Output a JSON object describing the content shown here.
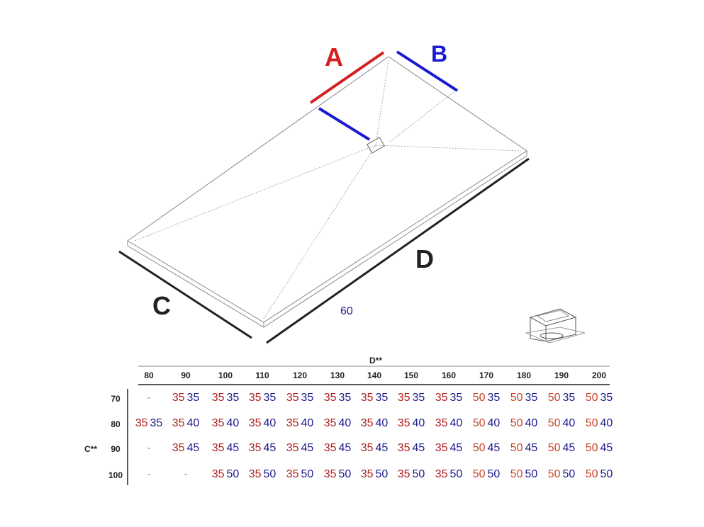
{
  "labels": {
    "A": "A",
    "B": "B",
    "C": "C",
    "D": "D",
    "dimension": "60"
  },
  "colors": {
    "A": "#d42020",
    "B": "#1a1ad0",
    "first_35": "#b02020",
    "first_50": "#c8452a",
    "second": "#1a1a8c"
  },
  "table": {
    "col_axis": "D**",
    "row_axis": "C**",
    "columns": [
      "80",
      "90",
      "100",
      "110",
      "120",
      "130",
      "140",
      "150",
      "160",
      "170",
      "180",
      "190",
      "200"
    ],
    "rows": [
      {
        "label": "70",
        "cells": [
          "-",
          "35 35",
          "35 35",
          "35 35",
          "35 35",
          "35 35",
          "35 35",
          "35 35",
          "35 35",
          "50 35",
          "50 35",
          "50 35",
          "50 35"
        ]
      },
      {
        "label": "80",
        "cells": [
          "35 35",
          "35 40",
          "35 40",
          "35 40",
          "35 40",
          "35 40",
          "35 40",
          "35 40",
          "35 40",
          "50 40",
          "50 40",
          "50 40",
          "50 40"
        ]
      },
      {
        "label": "90",
        "cells": [
          "-",
          "35 45",
          "35 45",
          "35 45",
          "35 45",
          "35 45",
          "35 45",
          "35 45",
          "35 45",
          "50 45",
          "50 45",
          "50 45",
          "50 45"
        ]
      },
      {
        "label": "100",
        "cells": [
          "-",
          "-",
          "35 50",
          "35 50",
          "35 50",
          "35 50",
          "35 50",
          "35 50",
          "35 50",
          "50 50",
          "50 50",
          "50 50",
          "50 50"
        ]
      }
    ]
  }
}
